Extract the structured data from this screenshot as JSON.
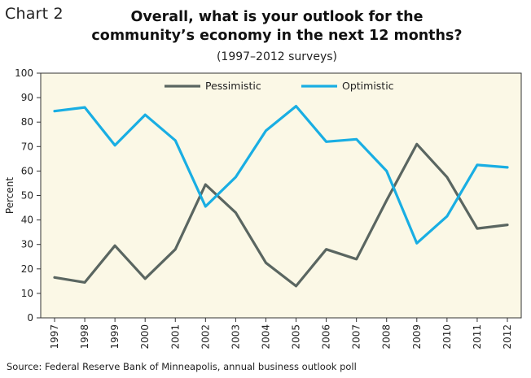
{
  "header": {
    "chart_label": "Chart 2",
    "title": "Overall, what is your outlook for the community’s economy in the next 12 months?",
    "subtitle": "(1997–2012 surveys)"
  },
  "footer": {
    "source": "Source: Federal Reserve Bank of Minneapolis, annual business outlook poll"
  },
  "colors": {
    "plot_background": "#fbf8e6",
    "pessimistic": "#5a6661",
    "optimistic": "#19aee3",
    "axis": "#333333"
  },
  "chart_data": {
    "type": "line",
    "title": "Overall, what is your outlook for the community’s economy in the next 12 months?",
    "subtitle": "(1997–2012 surveys)",
    "xlabel": "",
    "ylabel": "Percent",
    "ylim": [
      0,
      100
    ],
    "yticks": [
      0,
      10,
      20,
      30,
      40,
      50,
      60,
      70,
      80,
      90,
      100
    ],
    "grid": false,
    "legend_position": "top",
    "categories": [
      "1997",
      "1998",
      "1999",
      "2000",
      "2001",
      "2002",
      "2003",
      "2004",
      "2005",
      "2006",
      "2007",
      "2008",
      "2009",
      "2010",
      "2011",
      "2012"
    ],
    "series": [
      {
        "name": "Pessimistic",
        "color": "#5a6661",
        "values": [
          16.5,
          14.5,
          29.5,
          16,
          28,
          54.5,
          43,
          22.5,
          13,
          28,
          24,
          48,
          71,
          57.5,
          36.5,
          38
        ]
      },
      {
        "name": "Optimistic",
        "color": "#19aee3",
        "values": [
          84.5,
          86,
          70.5,
          83,
          72.5,
          45.5,
          57.5,
          76.5,
          86.5,
          72,
          73,
          60,
          30.5,
          41.5,
          62.5,
          61.5
        ]
      }
    ]
  }
}
